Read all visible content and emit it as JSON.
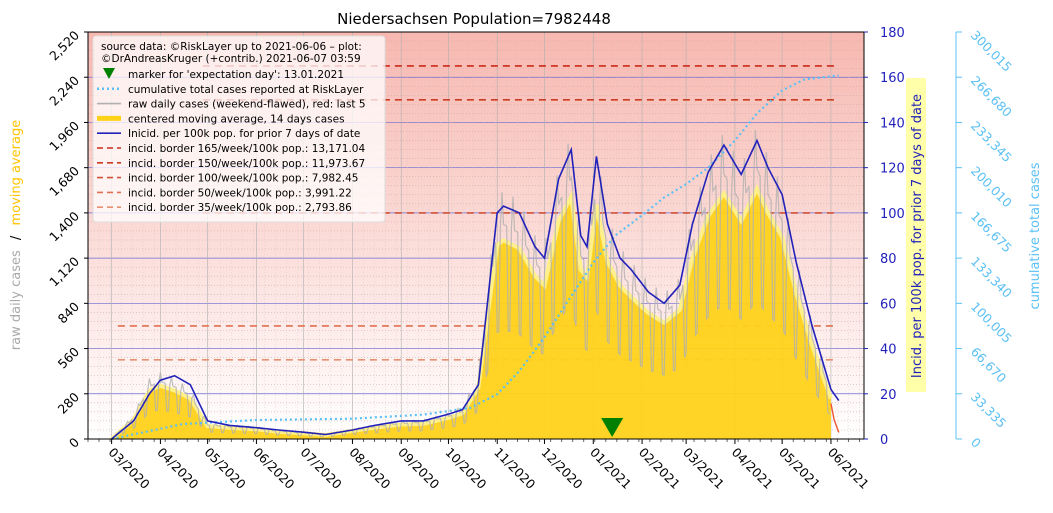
{
  "chart_data": {
    "type": "line",
    "title": "Niedersachsen Population=7982448",
    "left_axis": {
      "label_part1": "raw daily cases",
      "label_sep": "/",
      "label_part2": "moving average",
      "ticks": [
        "0",
        "280",
        "560",
        "840",
        "1,120",
        "1,400",
        "1,680",
        "1,960",
        "2,240",
        "2,520"
      ],
      "ylim": [
        0,
        2520
      ]
    },
    "right_axis_incidence": {
      "label": "Incid. per 100k pop. for prior 7 days of date",
      "ticks": [
        "0",
        "20",
        "40",
        "60",
        "80",
        "100",
        "120",
        "140",
        "160",
        "180"
      ],
      "ylim": [
        0,
        180
      ]
    },
    "right_axis_cumulative": {
      "label": "cumulative total cases",
      "ticks": [
        "0",
        "33,335",
        "66,670",
        "100,005",
        "133,340",
        "166,675",
        "200,010",
        "233,345",
        "266,680",
        "300,015"
      ],
      "ylim": [
        0,
        300015
      ]
    },
    "x_ticks": [
      "03/2020",
      "04/2020",
      "05/2020",
      "06/2020",
      "07/2020",
      "08/2020",
      "09/2020",
      "10/2020",
      "11/2020",
      "12/2020",
      "01/2021",
      "02/2021",
      "03/2021",
      "04/2021",
      "05/2021",
      "06/2021"
    ],
    "legend": {
      "placement": "top-left",
      "source_line1": "source data: ©RiskLayer up to 2021-06-06 – plot:",
      "source_line2": "©DrAndreasKruger (+contrib.) 2021-06-07 03:59",
      "entries": [
        {
          "label": "marker for 'expectation day': 13.01.2021",
          "color": "#008000",
          "kind": "triangle"
        },
        {
          "label": "cumulative total cases reported at RiskLayer",
          "color": "#5bc0f5",
          "kind": "dotted"
        },
        {
          "label": "raw daily cases (weekend-flawed), red: last 5",
          "color": "#b0b0b0",
          "kind": "line"
        },
        {
          "label": "centered moving average, 14 days cases",
          "color": "#ffd21a",
          "kind": "thick"
        },
        {
          "label": "Inicid. per 100k pop. for prior 7 days of date",
          "color": "#2222bb",
          "kind": "line"
        },
        {
          "label": "incid. border 165/week/100k pop.: 13,171.04",
          "color": "#cc2a1a",
          "kind": "dashed"
        },
        {
          "label": "incid. border 150/week/100k pop.: 11,973.67",
          "color": "#cc3a22",
          "kind": "dashed"
        },
        {
          "label": "incid. border 100/week/100k pop.: 7,982.45",
          "color": "#d0503a",
          "kind": "dashed"
        },
        {
          "label": "incid. border   50/week/100k pop.: 3,991.22",
          "color": "#e07050",
          "kind": "dashed"
        },
        {
          "label": "incid. border   35/week/100k pop.: 2,793.86",
          "color": "#e59070",
          "kind": "dashed"
        }
      ]
    },
    "incidence_borders": [
      165,
      150,
      100,
      50,
      35
    ],
    "expectation_marker_date": "2021-01-13",
    "colors": {
      "raw": "#b0b0b0",
      "moving_avg": "#ffd21a",
      "incidence": "#2222bb",
      "cumulative": "#5bc0f5",
      "left_label_gray": "#aaaaaa",
      "left_label_yellow": "#ffc400",
      "right_axis": "#2222bb",
      "cum_axis": "#5bc0f5",
      "marker": "#008000"
    },
    "incidence_series": {
      "name": "Inicid. per 100k pop. for prior 7 days of date",
      "x": [
        "2020-03-01",
        "2020-03-15",
        "2020-03-25",
        "2020-04-01",
        "2020-04-10",
        "2020-04-20",
        "2020-05-01",
        "2020-05-15",
        "2020-06-01",
        "2020-06-15",
        "2020-07-01",
        "2020-07-15",
        "2020-08-01",
        "2020-08-15",
        "2020-09-01",
        "2020-09-15",
        "2020-10-01",
        "2020-10-10",
        "2020-10-20",
        "2020-10-25",
        "2020-11-01",
        "2020-11-05",
        "2020-11-15",
        "2020-11-25",
        "2020-12-01",
        "2020-12-10",
        "2020-12-18",
        "2020-12-24",
        "2020-12-28",
        "2021-01-03",
        "2021-01-10",
        "2021-01-18",
        "2021-01-25",
        "2021-02-05",
        "2021-02-15",
        "2021-02-25",
        "2021-03-05",
        "2021-03-15",
        "2021-03-25",
        "2021-04-05",
        "2021-04-15",
        "2021-04-22",
        "2021-05-01",
        "2021-05-10",
        "2021-05-20",
        "2021-06-01",
        "2021-06-06"
      ],
      "values": [
        0,
        8,
        20,
        26,
        28,
        24,
        8,
        6,
        5,
        4,
        3,
        2,
        4,
        6,
        8,
        8,
        11,
        13,
        24,
        55,
        100,
        103,
        100,
        85,
        80,
        115,
        128,
        90,
        85,
        125,
        95,
        80,
        75,
        65,
        60,
        68,
        95,
        118,
        130,
        117,
        132,
        120,
        108,
        78,
        50,
        22,
        17
      ]
    },
    "cumulative_series": {
      "name": "cumulative total cases reported at RiskLayer",
      "x": [
        "2020-03-01",
        "2020-04-15",
        "2020-06-01",
        "2020-08-01",
        "2020-09-15",
        "2020-10-15",
        "2020-11-01",
        "2020-11-15",
        "2020-12-01",
        "2020-12-15",
        "2021-01-01",
        "2021-01-15",
        "2021-02-01",
        "2021-02-15",
        "2021-03-01",
        "2021-03-15",
        "2021-04-01",
        "2021-04-15",
        "2021-05-01",
        "2021-05-15",
        "2021-06-06"
      ],
      "values": [
        0,
        11000,
        14000,
        15000,
        18000,
        23000,
        33000,
        50000,
        75000,
        100000,
        130000,
        150000,
        165000,
        178000,
        188000,
        200000,
        220000,
        240000,
        257000,
        265000,
        268000
      ]
    },
    "moving_avg_series": {
      "name": "centered moving average, 14 days cases",
      "x": [
        "2020-03-01",
        "2020-03-15",
        "2020-03-25",
        "2020-04-01",
        "2020-04-10",
        "2020-04-20",
        "2020-05-01",
        "2020-05-15",
        "2020-06-01",
        "2020-06-15",
        "2020-07-01",
        "2020-07-15",
        "2020-08-01",
        "2020-08-15",
        "2020-09-01",
        "2020-09-15",
        "2020-10-01",
        "2020-10-10",
        "2020-10-20",
        "2020-10-25",
        "2020-11-01",
        "2020-11-05",
        "2020-11-15",
        "2020-11-25",
        "2020-12-01",
        "2020-12-10",
        "2020-12-18",
        "2020-12-24",
        "2020-12-28",
        "2021-01-03",
        "2021-01-10",
        "2021-01-18",
        "2021-01-25",
        "2021-02-05",
        "2021-02-15",
        "2021-02-25",
        "2021-03-05",
        "2021-03-15",
        "2021-03-25",
        "2021-04-05",
        "2021-04-15",
        "2021-04-22",
        "2021-05-01",
        "2021-05-10",
        "2021-05-20",
        "2021-06-01"
      ],
      "values": [
        0,
        120,
        300,
        330,
        300,
        250,
        80,
        70,
        60,
        45,
        35,
        25,
        50,
        70,
        90,
        95,
        130,
        160,
        320,
        700,
        1200,
        1230,
        1180,
        1010,
        950,
        1350,
        1500,
        1050,
        1000,
        1450,
        1100,
        950,
        880,
        780,
        720,
        800,
        1120,
        1380,
        1520,
        1350,
        1550,
        1400,
        1250,
        900,
        580,
        250
      ]
    }
  }
}
